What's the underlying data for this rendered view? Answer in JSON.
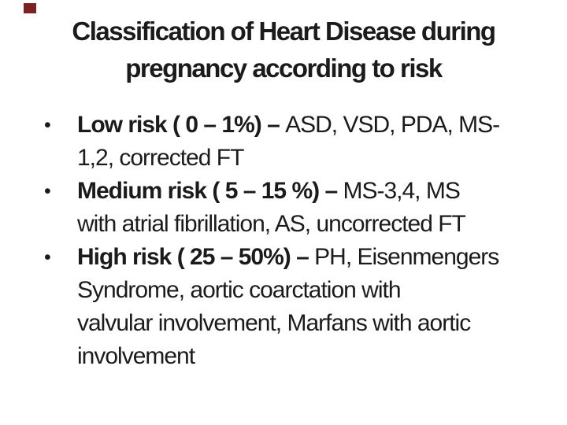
{
  "slide": {
    "background_color": "#ffffff",
    "text_color": "#1b1b1b",
    "accent_color": "#7b2122",
    "title": {
      "line1": "Classification of Heart Disease during",
      "line2": "pregnancy according to risk"
    },
    "bullets": [
      {
        "marker": "•",
        "lines": [
          {
            "bold": "Low risk ( 0 – 1%) – ",
            "regular": "ASD, VSD, PDA, MS-"
          },
          {
            "bold": "",
            "regular": "1,2, corrected FT"
          }
        ]
      },
      {
        "marker": "•",
        "lines": [
          {
            "bold": "Medium risk ( 5 – 15 %) – ",
            "regular": "MS-3,4, MS"
          },
          {
            "bold": "",
            "regular": "with atrial fibrillation, AS, uncorrected FT"
          }
        ]
      },
      {
        "marker": "•",
        "lines": [
          {
            "bold": "High risk ( 25 – 50%) – ",
            "regular": "PH, Eisenmengers"
          },
          {
            "bold": "",
            "regular": "Syndrome, aortic coarctation with"
          },
          {
            "bold": "",
            "regular": "valvular involvement, Marfans with aortic"
          },
          {
            "bold": "",
            "regular": "involvement"
          }
        ]
      }
    ]
  }
}
